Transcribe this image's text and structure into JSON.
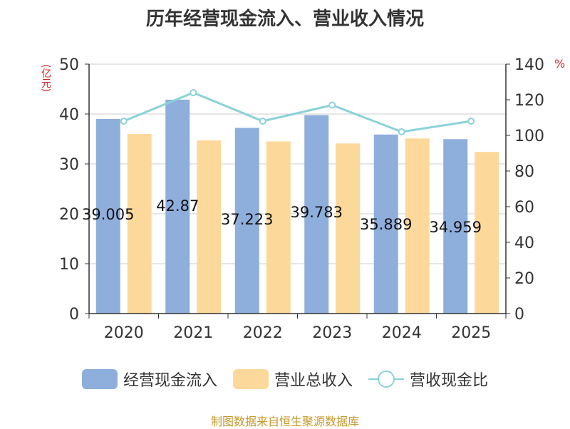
{
  "title": "历年经营现金流入、营业收入情况",
  "left_unit": "(亿元)",
  "right_unit": "%",
  "source": "制图数据来自恒生聚源数据库",
  "colors": {
    "cash_inflow": "#8eaedc",
    "revenue": "#fdd89b",
    "ratio": "#8ad2d8"
  },
  "chart_data": {
    "type": "bar",
    "categories": [
      "2020",
      "2021",
      "2022",
      "2023",
      "2024",
      "2025"
    ],
    "series": [
      {
        "name": "经营现金流入",
        "values": [
          39.005,
          42.87,
          37.223,
          39.783,
          35.889,
          34.959
        ],
        "labels": [
          "39.005",
          "42.87",
          "37.223",
          "39.783",
          "35.889",
          "34.959"
        ]
      },
      {
        "name": "营业总收入",
        "values": [
          36.0,
          34.7,
          34.5,
          34.1,
          35.1,
          32.4
        ]
      },
      {
        "name": "营收现金比",
        "type": "line",
        "axis": "right",
        "values": [
          108,
          124,
          108,
          117,
          102,
          108
        ]
      }
    ],
    "ylim": [
      0,
      50
    ],
    "yticks": [
      "0",
      "10",
      "20",
      "30",
      "40",
      "50"
    ],
    "y2lim": [
      0,
      140
    ],
    "y2ticks": [
      "0",
      "20",
      "40",
      "60",
      "80",
      "100",
      "120",
      "140"
    ],
    "grid": true,
    "legend": "bottom"
  }
}
